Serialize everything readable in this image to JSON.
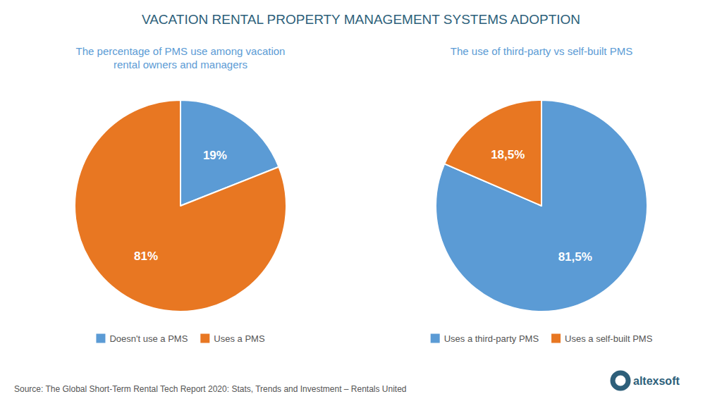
{
  "title": "VACATION RENTAL PROPERTY MANAGEMENT SYSTEMS ADOPTION",
  "annotations": [
    "Source: The Global Short-Term Rental Tech Report 2020: Stats, Trends and Investment – Rentals United",
    "altexsoft"
  ],
  "chart_data": [
    {
      "type": "pie",
      "title": "The percentage of PMS use among vacation\nrental owners and managers",
      "categories": [
        "Doesn't use a PMS",
        "Uses a PMS"
      ],
      "values": [
        19,
        81
      ],
      "value_labels": [
        "19%",
        "81%"
      ],
      "colors": [
        "#5b9bd5",
        "#e87722"
      ],
      "data_labels": true,
      "legend": "bottom"
    },
    {
      "type": "pie",
      "title": "The use of third-party vs self-built PMS",
      "categories": [
        "Uses a third-party PMS",
        "Uses a self-built PMS"
      ],
      "values": [
        81.5,
        18.5
      ],
      "value_labels": [
        "81,5%",
        "18,5%"
      ],
      "colors": [
        "#5b9bd5",
        "#e87722"
      ],
      "data_labels": true,
      "legend": "bottom"
    }
  ]
}
